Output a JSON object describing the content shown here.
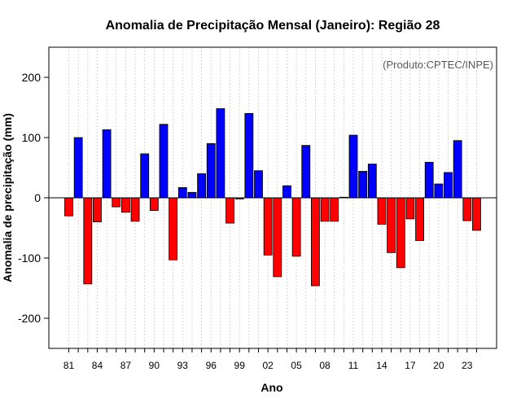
{
  "chart_data": {
    "type": "bar",
    "title": "Anomalia de Precipitação Mensal (Janeiro): Região 28",
    "xlabel": "Ano",
    "ylabel": "Anomalia de precipitação (mm)",
    "credit": "(Produto:CPTEC/INPE)",
    "ylim": [
      -250,
      250
    ],
    "yticks": [
      200,
      100,
      0,
      -100,
      -200
    ],
    "x_tick_labels": [
      "81",
      "84",
      "87",
      "90",
      "93",
      "96",
      "99",
      "02",
      "05",
      "08",
      "11",
      "14",
      "17",
      "20",
      "23"
    ],
    "tick_every": 3,
    "years": [
      1981,
      1982,
      1983,
      1984,
      1985,
      1986,
      1987,
      1988,
      1989,
      1990,
      1991,
      1992,
      1993,
      1994,
      1995,
      1996,
      1997,
      1998,
      1999,
      2000,
      2001,
      2002,
      2003,
      2004,
      2005,
      2006,
      2007,
      2008,
      2009,
      2010,
      2011,
      2012,
      2013,
      2014,
      2015,
      2016,
      2017,
      2018,
      2019,
      2020,
      2021,
      2022,
      2023,
      2024
    ],
    "values": [
      -30,
      100,
      -143,
      -40,
      113,
      -15,
      -24,
      -39,
      73,
      -21,
      122,
      -103,
      17,
      9,
      40,
      90,
      148,
      -42,
      -2,
      140,
      45,
      -95,
      -131,
      20,
      -97,
      87,
      -146,
      -39,
      -39,
      1,
      104,
      44,
      56,
      -44,
      -91,
      -116,
      -35,
      -71,
      59,
      23,
      42,
      95,
      -38,
      -54
    ],
    "colors": {
      "positive": "#0000ff",
      "negative": "#ff0000",
      "zero_line": "#000000",
      "grid": "#cccccc"
    }
  }
}
